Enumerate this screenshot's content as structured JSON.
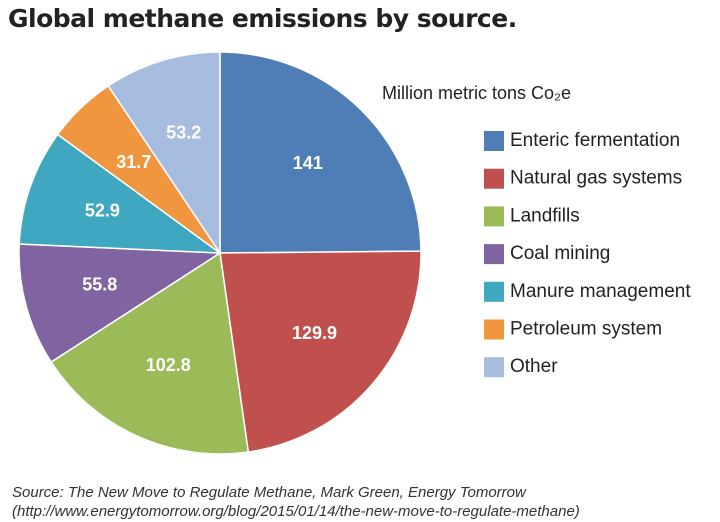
{
  "chart_data": {
    "type": "pie",
    "title": "Global methane emissions by source.",
    "subtitle": "Million metric tons Co₂e",
    "categories": [
      "Enteric fermentation",
      "Natural gas systems",
      "Landfills",
      "Coal mining",
      "Manure management",
      "Petroleum system",
      "Other"
    ],
    "values": [
      141,
      129.9,
      102.8,
      55.8,
      52.9,
      31.7,
      53.2
    ],
    "colors": [
      "#4f7db6",
      "#c0504d",
      "#9bbb59",
      "#8064a2",
      "#3fa7bf",
      "#f0963f",
      "#a7bde0"
    ],
    "legend": "right",
    "source": [
      "Source: The New Move to Regulate Methane, Mark Green, Energy Tomorrow",
      "(http://www.energytomorrow.org/blog/2015/01/14/the-new-move-to-regulate-methane)"
    ]
  }
}
